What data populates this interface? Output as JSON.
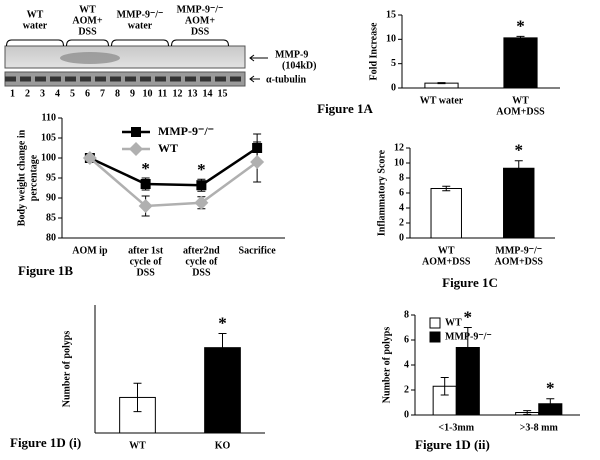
{
  "blot": {
    "groups": [
      [
        "WT",
        "water"
      ],
      [
        "WT",
        "AOM+",
        "DSS"
      ],
      [
        "MMP-9⁻/⁻",
        "water"
      ],
      [
        "MMP-9⁻/⁻",
        "AOM+",
        "DSS"
      ]
    ],
    "bands": [
      [
        "MMP-9",
        "(104kD)"
      ],
      [
        "α-tubulin"
      ]
    ],
    "lanes": [
      "1",
      "2",
      "3",
      "4",
      "5",
      "6",
      "7",
      "8",
      "9",
      "10",
      "11",
      "12",
      "13",
      "14",
      "15"
    ],
    "caption": "Figure 1A"
  },
  "chart_data": [
    {
      "type": "bar",
      "ylabel": [
        "Fold Increase"
      ],
      "categories": [
        [
          "WT water"
        ],
        [
          "WT",
          "AOM+DSS"
        ]
      ],
      "values": [
        1.0,
        10.3
      ],
      "errors": [
        0.1,
        0.3
      ],
      "colors": [
        "#ffffff",
        "#000000"
      ],
      "significance": [
        null,
        "*"
      ],
      "ylim": [
        0,
        15
      ],
      "yticks": [
        0,
        5,
        10,
        15
      ]
    },
    {
      "type": "line",
      "caption": "Figure 1B",
      "ylabel": [
        "Body weight change in",
        "percentage"
      ],
      "categories": [
        [
          "AOM ip"
        ],
        [
          "after 1st",
          "cycle of",
          "DSS"
        ],
        [
          "after2nd",
          "cycle of",
          "DSS"
        ],
        [
          "Sacrifice"
        ]
      ],
      "series": [
        {
          "name": "MMP-9⁻/⁻",
          "color": "#000000",
          "marker": "square",
          "values": [
            100,
            93.5,
            93.2,
            102.5
          ],
          "errors": [
            0,
            1.5,
            1.5,
            3.5
          ]
        },
        {
          "name": "WT",
          "color": "#b0b0b0",
          "marker": "diamond",
          "values": [
            100,
            88,
            88.8,
            99
          ],
          "errors": [
            0,
            2.5,
            1.5,
            5
          ]
        }
      ],
      "significance": [
        null,
        "*",
        "*",
        null
      ],
      "legend": "upper left",
      "ylim": [
        80,
        110
      ],
      "yticks": [
        80,
        85,
        90,
        95,
        100,
        105,
        110
      ]
    },
    {
      "type": "bar",
      "caption": "Figure 1C",
      "ylabel": [
        "Inflammatory Score"
      ],
      "categories": [
        [
          "WT",
          "AOM+DSS"
        ],
        [
          "MMP-9⁻/⁻",
          "AOM+DSS"
        ]
      ],
      "values": [
        6.6,
        9.3
      ],
      "errors": [
        0.3,
        1.0
      ],
      "colors": [
        "#ffffff",
        "#000000"
      ],
      "significance": [
        null,
        "*"
      ],
      "ylim": [
        0,
        12
      ],
      "yticks": [
        0,
        2,
        4,
        6,
        8,
        10,
        12
      ]
    },
    {
      "type": "bar",
      "caption": "Figure 1D (i)",
      "ylabel": [
        "Number of polyps"
      ],
      "categories": [
        [
          "WT"
        ],
        [
          "KO"
        ]
      ],
      "values": [
        2.5,
        6.0
      ],
      "errors": [
        1.0,
        1.0
      ],
      "colors": [
        "#ffffff",
        "#000000"
      ],
      "significance": [
        null,
        "*"
      ],
      "ylim": [
        0,
        9
      ]
    },
    {
      "type": "bar",
      "caption": "Figure 1D (ii)",
      "ylabel": [
        "Number of polyps"
      ],
      "categories": [
        [
          "<1-3mm"
        ],
        [
          ">3-8 mm"
        ]
      ],
      "series": [
        {
          "name": "WT",
          "color": "#ffffff",
          "values": [
            2.3,
            0.2
          ],
          "errors": [
            0.7,
            0.15
          ]
        },
        {
          "name": "MMP-9⁻/⁻",
          "color": "#000000",
          "values": [
            5.4,
            0.9
          ],
          "errors": [
            1.6,
            0.4
          ],
          "significance": [
            "*",
            "*"
          ]
        }
      ],
      "legend": "upper left",
      "ylim": [
        0,
        8
      ],
      "yticks": [
        0,
        2,
        4,
        6,
        8
      ]
    }
  ]
}
